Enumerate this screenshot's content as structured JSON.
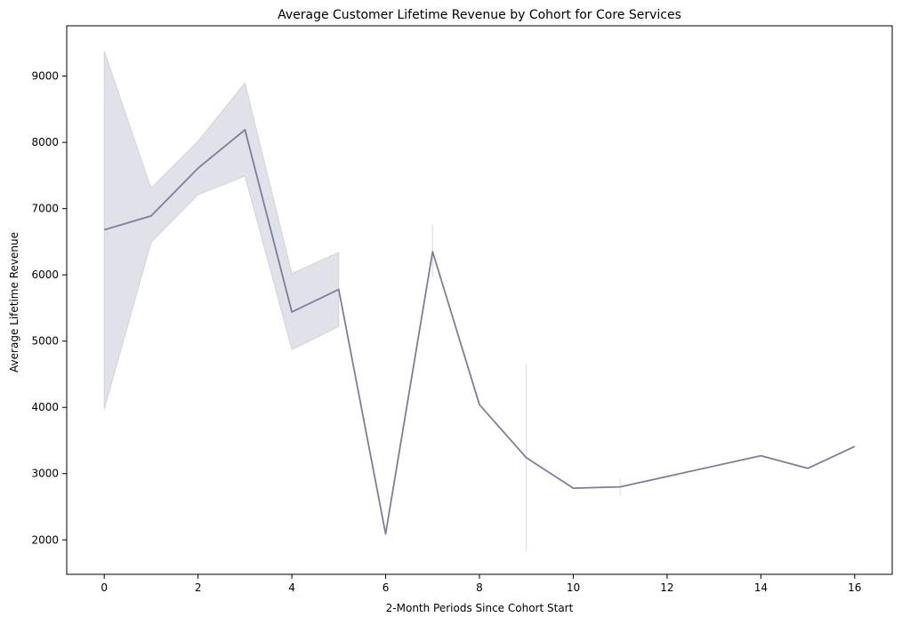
{
  "chart_data": {
    "type": "line",
    "title": "Average Customer Lifetime Revenue by Cohort for Core Services",
    "xlabel": "2-Month Periods Since Cohort Start",
    "ylabel": "Average Lifetime Revenue",
    "xlim": [
      -0.8,
      16.8
    ],
    "ylim": [
      1480,
      9760
    ],
    "xticks": [
      0,
      2,
      4,
      6,
      8,
      10,
      12,
      14,
      16
    ],
    "yticks": [
      2000,
      3000,
      4000,
      5000,
      6000,
      7000,
      8000,
      9000
    ],
    "grid": false,
    "legend": "none",
    "colors": {
      "line": "#7b7f9b",
      "band": "#b8bacb",
      "axis": "#000000"
    },
    "series": [
      {
        "x": [
          0,
          1,
          2,
          3,
          4,
          5,
          6,
          7,
          8,
          9,
          10,
          11,
          14,
          15,
          16
        ],
        "y": [
          6680,
          6890,
          7610,
          8190,
          5440,
          5780,
          2090,
          6350,
          4040,
          3240,
          2780,
          2800,
          3270,
          3080,
          3410
        ],
        "ci_low": [
          3970,
          6490,
          7210,
          7490,
          4870,
          5220,
          null,
          5960,
          null,
          1820,
          null,
          2670,
          null,
          null,
          null
        ],
        "ci_high": [
          9380,
          7310,
          8020,
          8900,
          6020,
          6340,
          null,
          6750,
          null,
          4650,
          null,
          2920,
          null,
          null,
          null
        ]
      }
    ]
  }
}
